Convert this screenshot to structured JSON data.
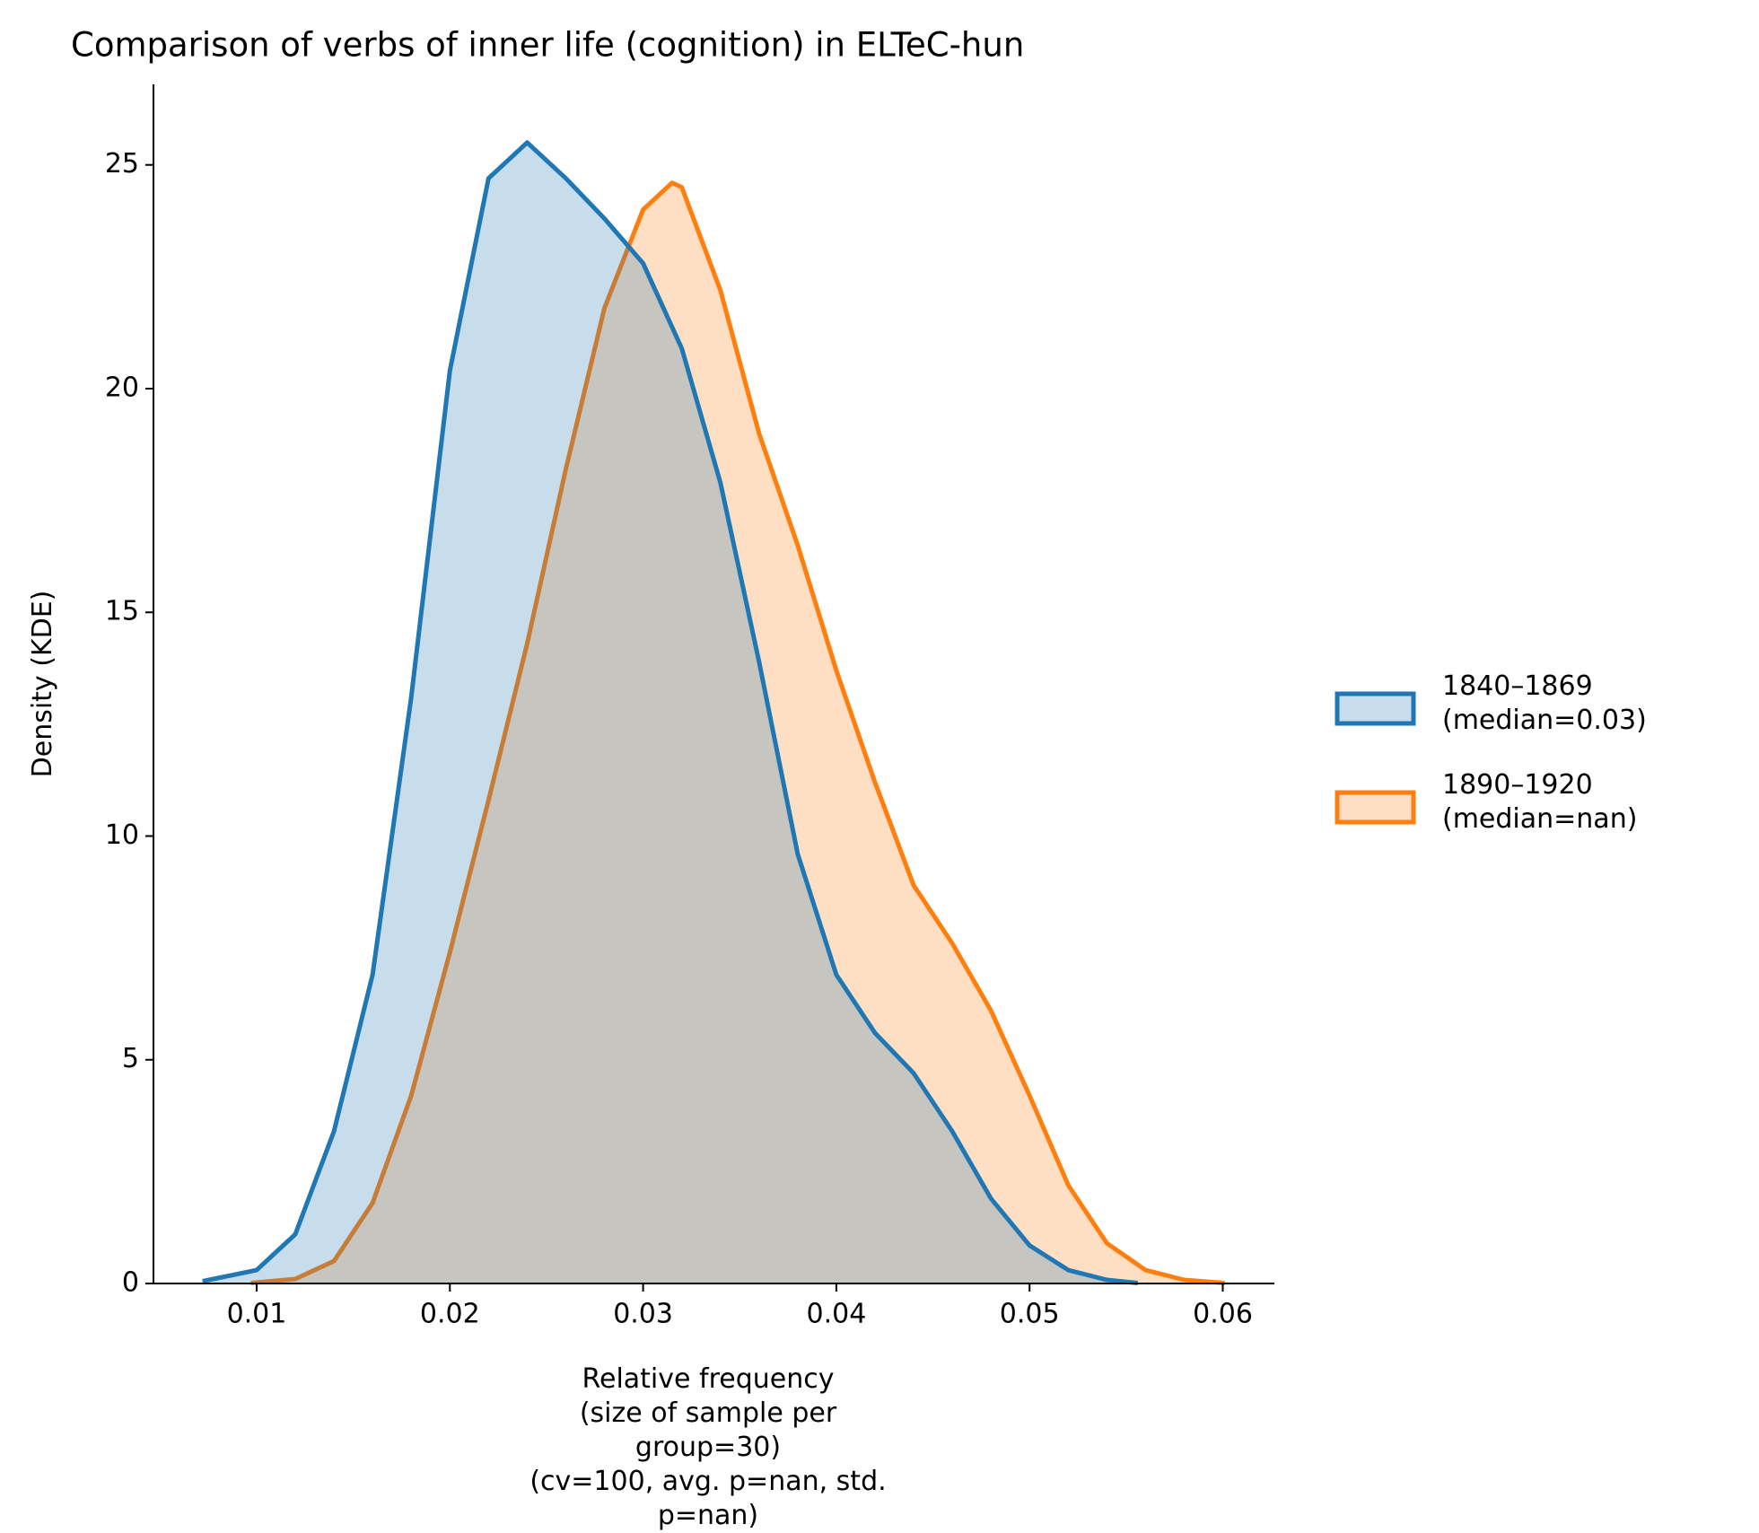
{
  "chart_data": {
    "type": "kde",
    "title": "Comparison of verbs of inner life (cognition) in ELTeC-hun",
    "x_label": "Relative frequency\n(size of sample per group=30)\n(cv=100, avg. p=nan, std. p=nan)",
    "y_label": "Density (KDE)",
    "xlim": [
      0.00466,
      0.06267
    ],
    "ylim": [
      0,
      26.8
    ],
    "xticks": [
      0.01,
      0.02,
      0.03,
      0.04,
      0.05,
      0.06
    ],
    "yticks": [
      0,
      5,
      10,
      15,
      20,
      25
    ],
    "series": [
      {
        "name": "1890–1920\n(median=nan)",
        "color": "#ff7f0e",
        "x": [
          0.0097,
          0.012,
          0.014,
          0.016,
          0.018,
          0.02,
          0.022,
          0.024,
          0.026,
          0.028,
          0.03,
          0.0315,
          0.032,
          0.034,
          0.036,
          0.038,
          0.04,
          0.042,
          0.044,
          0.046,
          0.048,
          0.05,
          0.052,
          0.054,
          0.056,
          0.058,
          0.0601
        ],
        "values": [
          0.01,
          0.1,
          0.5,
          1.8,
          4.2,
          7.4,
          10.8,
          14.3,
          18.2,
          21.8,
          24.0,
          24.6,
          24.5,
          22.2,
          19.0,
          16.5,
          13.7,
          11.2,
          8.9,
          7.6,
          6.1,
          4.2,
          2.2,
          0.9,
          0.3,
          0.08,
          0.01
        ]
      },
      {
        "name": "1840–1869\n(median=0.03)",
        "color": "#1f77b4",
        "x": [
          0.0072,
          0.01,
          0.012,
          0.014,
          0.016,
          0.018,
          0.02,
          0.022,
          0.024,
          0.026,
          0.028,
          0.03,
          0.032,
          0.034,
          0.036,
          0.038,
          0.04,
          0.042,
          0.044,
          0.046,
          0.048,
          0.05,
          0.052,
          0.054,
          0.0556
        ],
        "values": [
          0.05,
          0.3,
          1.1,
          3.4,
          6.9,
          13.1,
          20.4,
          24.7,
          25.5,
          24.7,
          23.8,
          22.8,
          20.9,
          17.9,
          13.9,
          9.6,
          6.9,
          5.6,
          4.7,
          3.4,
          1.9,
          0.85,
          0.3,
          0.08,
          0.01
        ]
      }
    ],
    "legend": "right"
  }
}
